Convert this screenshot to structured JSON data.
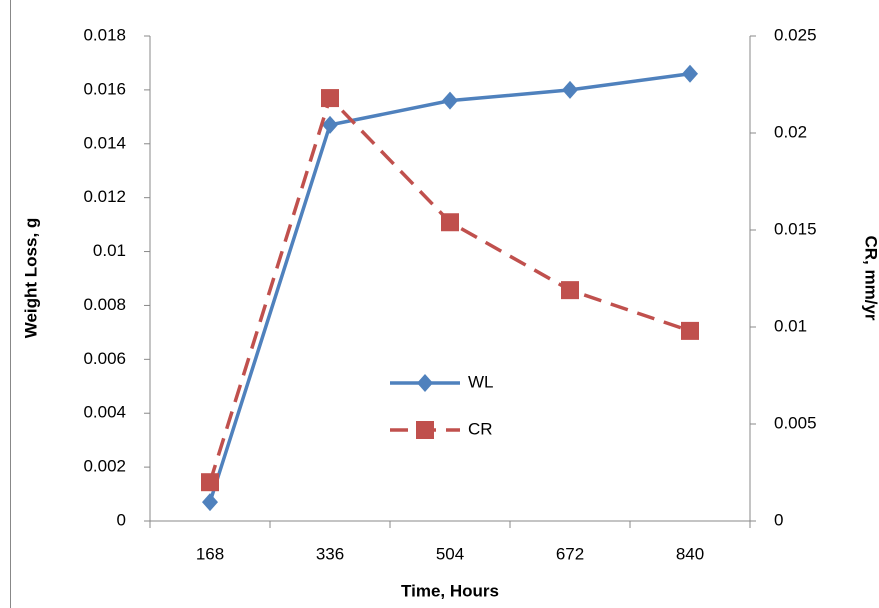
{
  "chart_data": {
    "type": "line",
    "categories": [
      "168",
      "336",
      "504",
      "672",
      "840"
    ],
    "xlabel": "Time, Hours",
    "ylabel": "Weight Loss, g",
    "y2label": "CR, mm/yr",
    "series": [
      {
        "name": "WL",
        "color": "#4f81bd",
        "marker": "diamond",
        "dash": false,
        "values": [
          0.0007,
          0.0147,
          0.0156,
          0.016,
          0.0166
        ]
      },
      {
        "name": "CR",
        "color": "#c0504d",
        "marker": "square",
        "dash": true,
        "axis": "y2",
        "values": [
          0.002,
          0.0218,
          0.0154,
          0.0119,
          0.0098
        ]
      }
    ],
    "ylim": [
      0,
      0.018
    ],
    "yticks": [
      0,
      0.002,
      0.004,
      0.006,
      0.008,
      0.01,
      0.012,
      0.014,
      0.016,
      0.018
    ],
    "y2lim": [
      0,
      0.025
    ],
    "y2ticks": [
      0,
      0.005,
      0.01,
      0.015,
      0.02,
      0.025
    ],
    "grid": false
  }
}
